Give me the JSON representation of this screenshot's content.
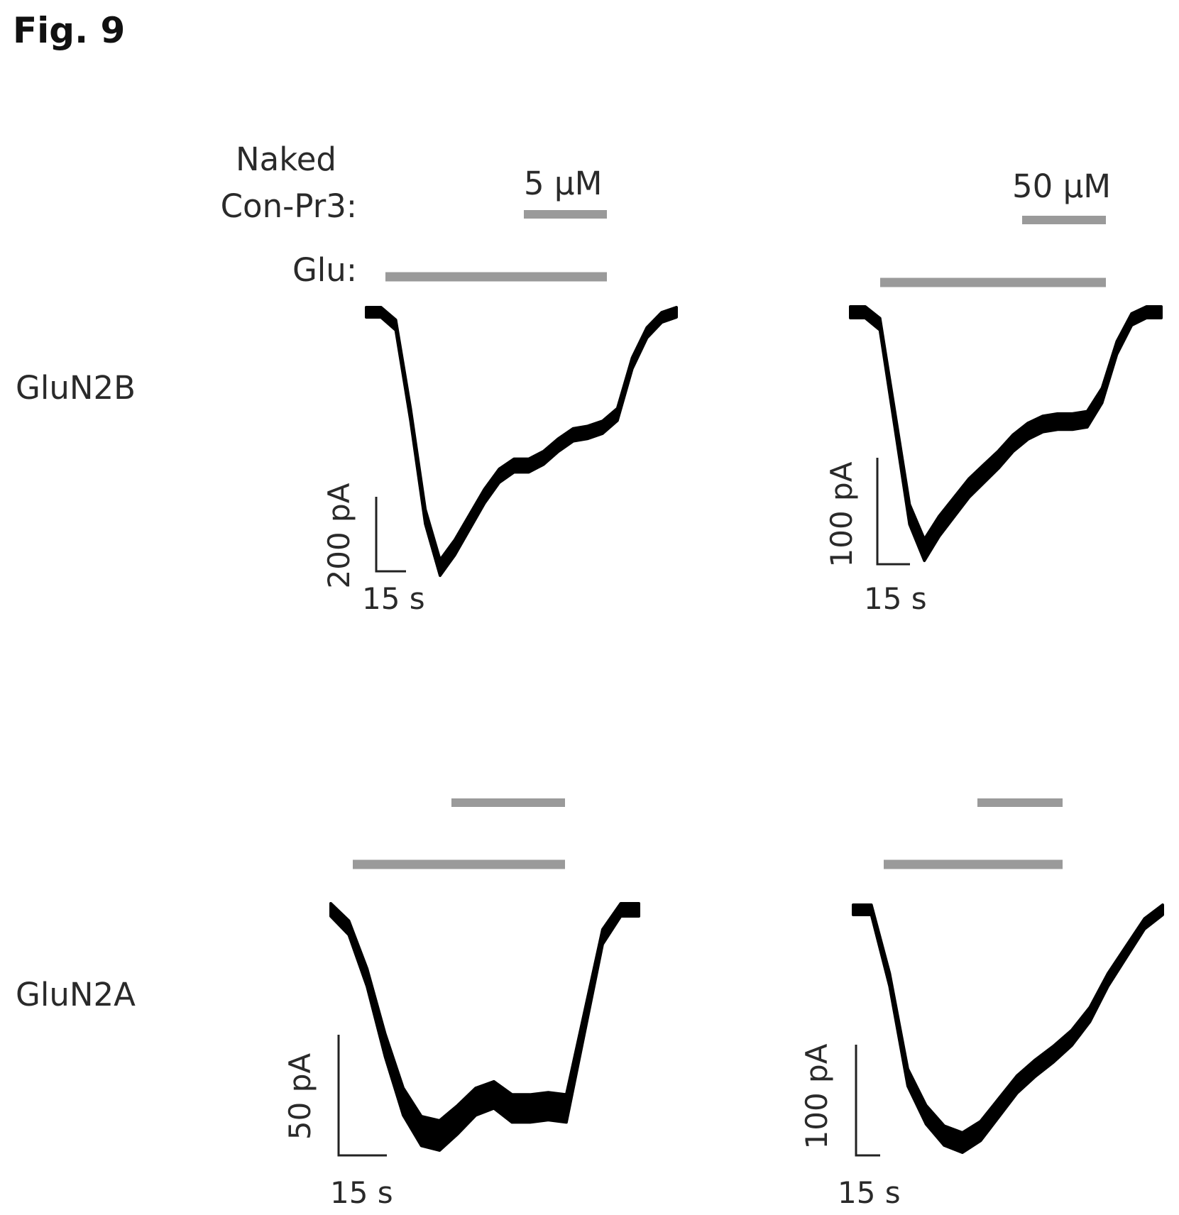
{
  "figure": {
    "title": "Fig. 9",
    "labels": {
      "naked": "Naked",
      "conpr3": "Con-Pr3:",
      "glu": "Glu:"
    },
    "concentrations": [
      "5 µM",
      "50 µM"
    ],
    "rows": [
      "GluN2B",
      "GluN2A"
    ],
    "colors": {
      "bar": "#9a9a9a",
      "trace": "#000000",
      "text": "#2a2a2a"
    }
  },
  "chart_data": [
    {
      "type": "line",
      "row": "GluN2B",
      "concentration": "5 µM",
      "scale_bar": {
        "y_label": "200 pA",
        "x_label": "15 s",
        "y_value_pA": 200,
        "x_value_s": 15
      },
      "trace_relative_current": [
        0,
        0,
        -0.05,
        -0.4,
        -0.8,
        -1.0,
        -0.92,
        -0.82,
        -0.72,
        -0.64,
        -0.6,
        -0.6,
        -0.57,
        -0.52,
        -0.48,
        -0.47,
        -0.45,
        -0.4,
        -0.2,
        -0.08,
        -0.02,
        0
      ]
    },
    {
      "type": "line",
      "row": "GluN2B",
      "concentration": "50 µM",
      "scale_bar": {
        "y_label": "100 pA",
        "x_label": "15 s",
        "y_value_pA": 100,
        "x_value_s": 15
      },
      "trace_relative_current": [
        0,
        0,
        -0.05,
        -0.45,
        -0.85,
        -1.0,
        -0.9,
        -0.82,
        -0.74,
        -0.68,
        -0.62,
        -0.55,
        -0.5,
        -0.47,
        -0.46,
        -0.46,
        -0.45,
        -0.35,
        -0.15,
        -0.03,
        0,
        0
      ]
    },
    {
      "type": "line",
      "row": "GluN2A",
      "concentration": "5 µM",
      "scale_bar": {
        "y_label": "50 pA",
        "x_label": "15 s",
        "y_value_pA": 50,
        "x_value_s": 15
      },
      "trace_relative_current": [
        0,
        -0.08,
        -0.3,
        -0.6,
        -0.85,
        -0.98,
        -1.0,
        -0.93,
        -0.85,
        -0.82,
        -0.88,
        -0.88,
        -0.87,
        -0.88,
        -0.5,
        -0.12,
        0,
        0
      ]
    },
    {
      "type": "line",
      "row": "GluN2A",
      "concentration": "50 µM",
      "scale_bar": {
        "y_label": "100 pA",
        "x_label": "15 s",
        "y_value_pA": 100,
        "x_value_s": 15
      },
      "trace_relative_current": [
        0,
        0,
        -0.3,
        -0.72,
        -0.88,
        -0.97,
        -1.0,
        -0.95,
        -0.85,
        -0.75,
        -0.68,
        -0.62,
        -0.55,
        -0.45,
        -0.3,
        -0.18,
        -0.06,
        0
      ]
    }
  ]
}
